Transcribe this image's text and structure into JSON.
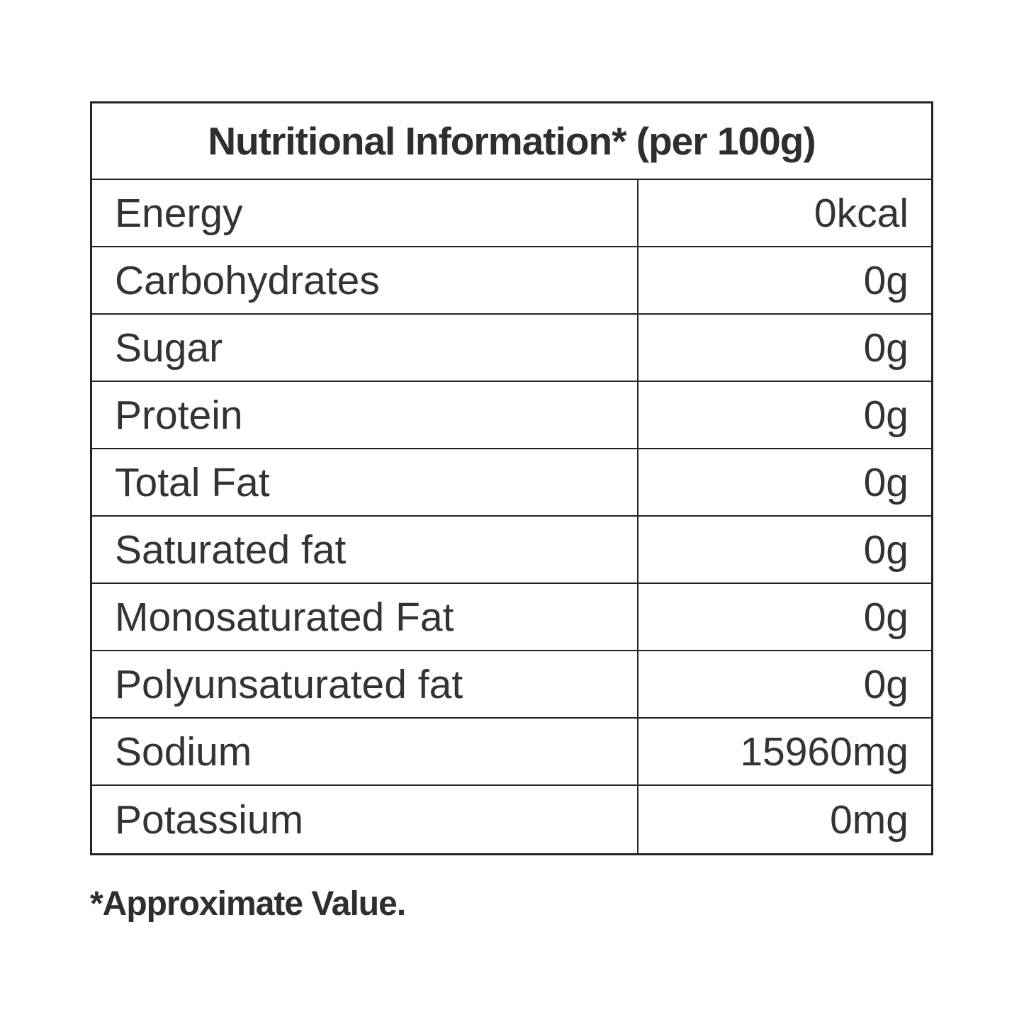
{
  "table": {
    "title": "Nutritional Information* (per 100g)",
    "rows": [
      {
        "label": "Energy",
        "value": "0kcal"
      },
      {
        "label": "Carbohydrates",
        "value": "0g"
      },
      {
        "label": "Sugar",
        "value": "0g"
      },
      {
        "label": "Protein",
        "value": "0g"
      },
      {
        "label": "Total Fat",
        "value": "0g"
      },
      {
        "label": "Saturated fat",
        "value": "0g"
      },
      {
        "label": "Monosaturated Fat",
        "value": "0g"
      },
      {
        "label": "Polyunsaturated fat",
        "value": "0g"
      },
      {
        "label": "Sodium",
        "value": "15960mg"
      },
      {
        "label": "Potassium",
        "value": "0mg"
      }
    ],
    "footnote": "*Approximate Value."
  },
  "colors": {
    "background": "#ffffff",
    "text": "#333333",
    "border": "#232323"
  }
}
